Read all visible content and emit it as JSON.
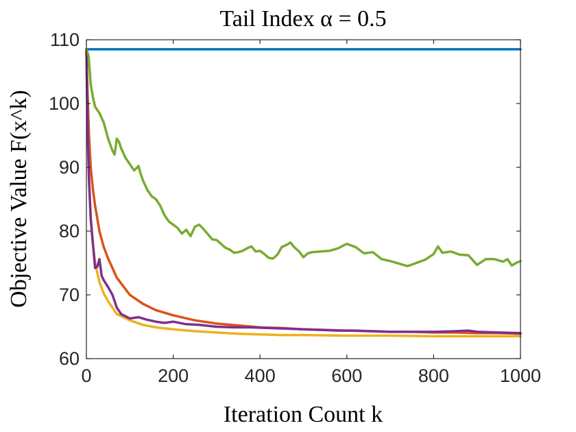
{
  "chart_data": {
    "type": "line",
    "title": "Tail Index α = 0.5",
    "xlabel": "Iteration Count k",
    "ylabel": "Objective Value F(x^k)",
    "xlim": [
      0,
      1000
    ],
    "ylim": [
      60,
      110
    ],
    "xticks": [
      0,
      200,
      400,
      600,
      800,
      1000
    ],
    "yticks": [
      60,
      70,
      80,
      90,
      100,
      110
    ],
    "xtick_labels": [
      "0",
      "200",
      "400",
      "600",
      "800",
      "1000"
    ],
    "ytick_labels": [
      "60",
      "70",
      "80",
      "90",
      "100",
      "110"
    ],
    "grid": false,
    "legend": "none",
    "series": [
      {
        "name": "blue",
        "color": "#0072BD",
        "x": [
          0,
          1000
        ],
        "y": [
          108.5,
          108.5
        ]
      },
      {
        "name": "orange",
        "color": "#D95319",
        "x": [
          0,
          3,
          6,
          10,
          15,
          20,
          30,
          40,
          50,
          70,
          100,
          130,
          160,
          200,
          250,
          300,
          350,
          400,
          450,
          500,
          550,
          600,
          650,
          700,
          750,
          800,
          850,
          900,
          950,
          1000
        ],
        "y": [
          108.5,
          101,
          95,
          90,
          86.5,
          84,
          80,
          77.5,
          75.7,
          72.7,
          70,
          68.6,
          67.6,
          66.8,
          66,
          65.5,
          65.2,
          64.9,
          64.8,
          64.6,
          64.5,
          64.4,
          64.3,
          64.2,
          64.2,
          64.1,
          64.1,
          64,
          64,
          63.9
        ]
      },
      {
        "name": "yellow",
        "color": "#EDB120",
        "x": [
          0,
          3,
          6,
          10,
          15,
          20,
          30,
          40,
          50,
          70,
          100,
          130,
          160,
          200,
          250,
          300,
          350,
          400,
          450,
          500,
          600,
          700,
          800,
          900,
          1000
        ],
        "y": [
          108.5,
          95,
          88,
          82,
          78,
          75,
          72,
          70.2,
          69,
          67,
          66,
          65.3,
          64.9,
          64.6,
          64.3,
          64.1,
          63.9,
          63.8,
          63.7,
          63.7,
          63.6,
          63.6,
          63.5,
          63.5,
          63.5
        ]
      },
      {
        "name": "purple",
        "color": "#7E2F8E",
        "x": [
          0,
          3,
          6,
          10,
          15,
          20,
          25,
          30,
          35,
          40,
          50,
          60,
          70,
          80,
          100,
          120,
          140,
          160,
          180,
          200,
          230,
          260,
          300,
          340,
          380,
          420,
          460,
          500,
          540,
          580,
          620,
          660,
          700,
          750,
          800,
          850,
          880,
          900,
          950,
          1000
        ],
        "y": [
          108.5,
          96,
          88,
          82,
          78,
          74.2,
          74.4,
          75.6,
          73,
          72.3,
          71.2,
          70,
          68,
          67,
          66.3,
          66.5,
          66.1,
          65.8,
          65.6,
          65.8,
          65.4,
          65.3,
          65,
          64.9,
          64.9,
          64.8,
          64.7,
          64.6,
          64.5,
          64.4,
          64.4,
          64.3,
          64.2,
          64.2,
          64.2,
          64.3,
          64.4,
          64.2,
          64.1,
          64
        ]
      },
      {
        "name": "green",
        "color": "#77AC30",
        "x": [
          0,
          5,
          10,
          15,
          20,
          25,
          30,
          40,
          50,
          60,
          65,
          70,
          75,
          80,
          90,
          100,
          110,
          120,
          125,
          130,
          140,
          150,
          160,
          170,
          180,
          190,
          200,
          210,
          220,
          230,
          240,
          250,
          260,
          270,
          280,
          290,
          300,
          310,
          320,
          330,
          340,
          350,
          360,
          370,
          380,
          390,
          400,
          410,
          420,
          430,
          440,
          450,
          460,
          470,
          480,
          490,
          500,
          510,
          520,
          540,
          560,
          580,
          600,
          620,
          640,
          660,
          680,
          700,
          720,
          740,
          760,
          780,
          800,
          810,
          820,
          840,
          860,
          880,
          900,
          920,
          940,
          960,
          970,
          980,
          990,
          1000
        ],
        "y": [
          108.5,
          107.5,
          103,
          101,
          99.5,
          99,
          98.5,
          97,
          94.5,
          92.6,
          92,
          94.5,
          94,
          93,
          91.5,
          90.5,
          89.5,
          90.2,
          89,
          88,
          86.5,
          85.5,
          85,
          84,
          82.5,
          81.5,
          81,
          80.5,
          79.6,
          80.2,
          79.2,
          80.7,
          81,
          80.3,
          79.5,
          78.7,
          78.6,
          78,
          77.4,
          77.1,
          76.6,
          76.7,
          76.9,
          77.3,
          77.6,
          76.8,
          76.9,
          76.4,
          75.8,
          75.7,
          76.3,
          77.5,
          77.8,
          78.2,
          77.4,
          76.8,
          75.9,
          76.5,
          76.7,
          76.8,
          76.9,
          77.3,
          78,
          77.5,
          76.5,
          76.7,
          75.6,
          75.3,
          74.9,
          74.5,
          75,
          75.5,
          76.4,
          77.6,
          76.6,
          76.8,
          76.3,
          76.2,
          74.7,
          75.6,
          75.6,
          75.2,
          75.6,
          74.6,
          75,
          75.3
        ]
      }
    ]
  }
}
